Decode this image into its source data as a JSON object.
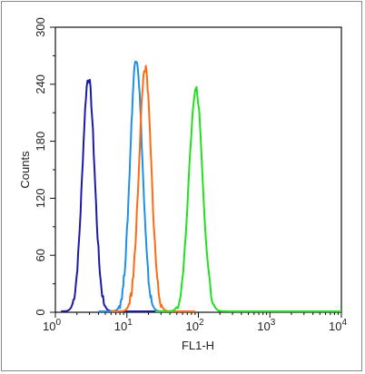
{
  "chart_data": {
    "type": "line",
    "title": "",
    "xlabel": "FL1-H",
    "ylabel": "Counts",
    "x_scale": "log",
    "xlim": [
      1,
      10000
    ],
    "ylim": [
      0,
      300
    ],
    "x_ticks": [
      {
        "value": 1,
        "base": "10",
        "exp": "0"
      },
      {
        "value": 10,
        "base": "10",
        "exp": "1"
      },
      {
        "value": 100,
        "base": "10",
        "exp": "2"
      },
      {
        "value": 1000,
        "base": "10",
        "exp": "3"
      },
      {
        "value": 10000,
        "base": "10",
        "exp": "4"
      }
    ],
    "y_ticks": [
      "0",
      "60",
      "120",
      "180",
      "240",
      "300"
    ],
    "y_tick_values": [
      0,
      60,
      120,
      180,
      240,
      300
    ],
    "grid": false,
    "series": [
      {
        "color": "#1a1aa8",
        "peak_x": 2.9,
        "peak_y": 247,
        "width_decades": 0.085,
        "start_x": 1.2,
        "end_x": 40,
        "baseline": 1
      },
      {
        "color": "#1e8fe6",
        "peak_x": 13.5,
        "peak_y": 268,
        "width_decades": 0.085,
        "start_x": 4,
        "end_x": 70,
        "baseline": 1
      },
      {
        "color": "#ff6a13",
        "peak_x": 18.0,
        "peak_y": 257,
        "width_decades": 0.085,
        "start_x": 6,
        "end_x": 90,
        "baseline": 1
      },
      {
        "color": "#22e01e",
        "peak_x": 92,
        "peak_y": 236,
        "width_decades": 0.095,
        "start_x": 25,
        "end_x": 10000,
        "baseline": 1
      }
    ]
  }
}
